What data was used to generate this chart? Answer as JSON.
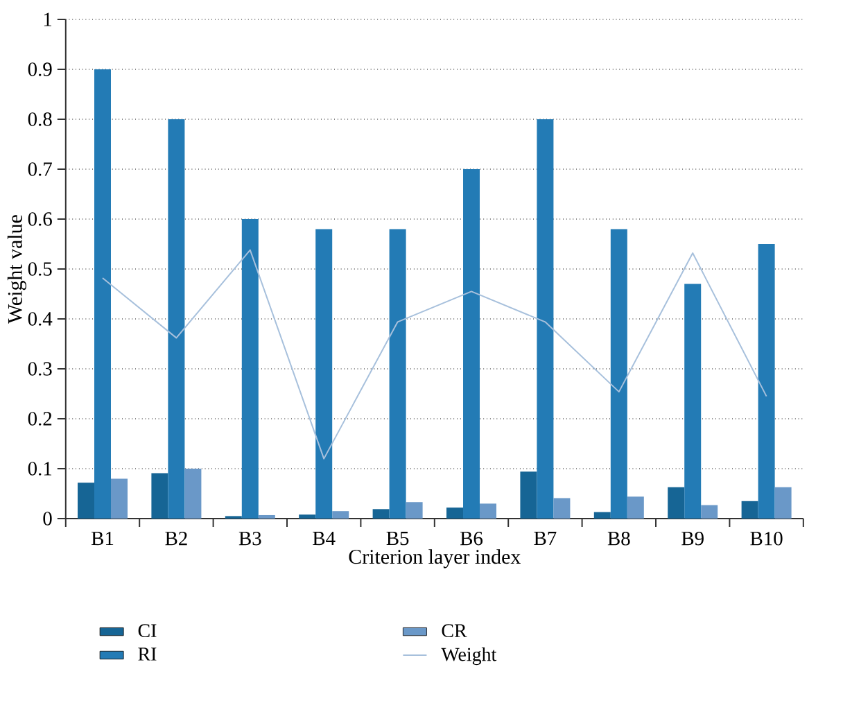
{
  "chart_data": {
    "type": "bar",
    "xlabel": "Criterion layer index",
    "ylabel": "Weight value",
    "categories": [
      "B1",
      "B2",
      "B3",
      "B4",
      "B5",
      "B6",
      "B7",
      "B8",
      "B9",
      "B10"
    ],
    "series": [
      {
        "name": "CI",
        "color": "#166595",
        "values": [
          0.072,
          0.091,
          0.005,
          0.008,
          0.019,
          0.022,
          0.094,
          0.013,
          0.063,
          0.035
        ]
      },
      {
        "name": "RI",
        "color": "#237bb5",
        "values": [
          0.9,
          0.8,
          0.6,
          0.58,
          0.58,
          0.7,
          0.8,
          0.58,
          0.47,
          0.55
        ]
      },
      {
        "name": "CR",
        "color": "#6a98c8",
        "values": [
          0.08,
          0.1,
          0.007,
          0.015,
          0.033,
          0.03,
          0.041,
          0.044,
          0.027,
          0.063
        ]
      },
      {
        "name": "Weight",
        "type": "line",
        "color": "#a7c0dc",
        "values": [
          0.482,
          0.362,
          0.538,
          0.12,
          0.394,
          0.455,
          0.394,
          0.254,
          0.532,
          0.245
        ]
      }
    ],
    "ylim": [
      0,
      1
    ],
    "yticks": [
      0,
      0.1,
      0.2,
      0.3,
      0.4,
      0.5,
      0.6,
      0.7,
      0.8,
      0.9,
      1
    ],
    "grid": "y",
    "legend": "bottom",
    "marker": "none",
    "line_style": "solid"
  }
}
